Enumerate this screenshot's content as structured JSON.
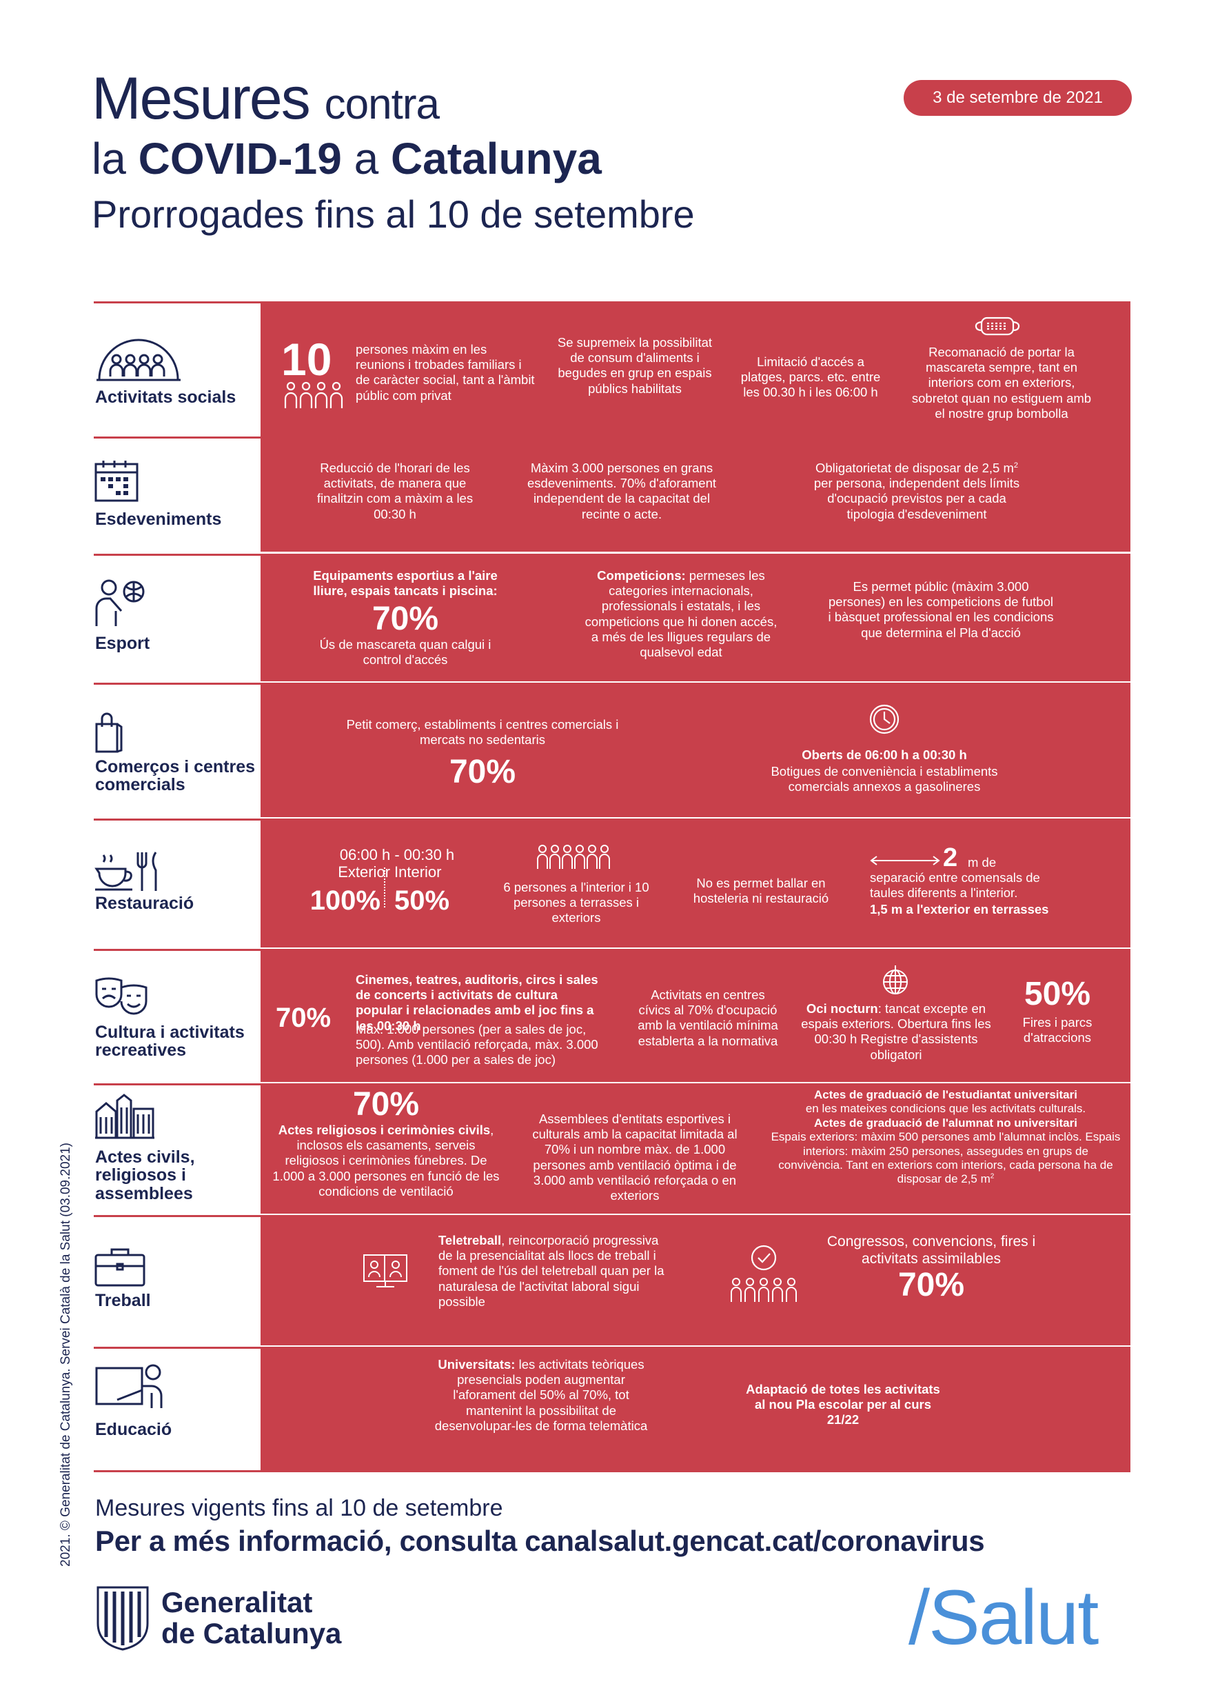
{
  "header": {
    "title_word1": "Mesures",
    "title_word2": "contra",
    "title_la": "la",
    "title_covid": "COVID-19",
    "title_a": "a",
    "title_catalunya": "Catalunya",
    "subtitle": "Prorrogades fins al 10 de setembre",
    "date": "3 de setembre de 2021"
  },
  "colors": {
    "panel": "#c8404b",
    "navy": "#1c2551",
    "salut_blue": "#4a90d9"
  },
  "rows": {
    "socials": {
      "label": "Activitats socials",
      "icon": "group-dome-icon",
      "big_number": "10",
      "c1": "persones màxim en les reunions i trobades familiars i de caràcter social, tant a l'àmbit públic com privat",
      "c2": "Se supremeix la possibilitat de consum d'aliments i begudes en grup en espais públics habilitats",
      "c3": "Limitació d'accés a platges, parcs. etc. entre les 00.30 h i les 06:00 h",
      "c4": "Recomanació de portar la mascareta sempre, tant en interiors com en exteriors, sobretot quan no estiguem amb el nostre grup bombolla"
    },
    "events": {
      "label": "Esdeveniments",
      "icon": "calendar-icon",
      "c1": "Reducció de l'horari de les activitats, de manera que finalitzin com a màxim a les 00:30 h",
      "c2": "Màxim 3.000 persones en grans esdeveniments. 70% d'aforament independent de la capacitat del recinte o acte.",
      "c3a": "Obligatorietat de disposar de 2,5 m",
      "c3sup": "2",
      "c3b": "per persona, independent dels límits d'ocupació previstos per a cada tipologia d'esdeveniment"
    },
    "sport": {
      "label": "Esport",
      "icon": "person-ball-icon",
      "c1_bold": "Equipaments esportius a l'aire lliure, espais tancats i piscina:",
      "c1_pct": "70%",
      "c1_text": "Ús de mascareta quan calgui i control d'accés",
      "c2_bold": "Competicions:",
      "c2_text": "permeses les categories internacionals, professionals i estatals, i les competicions que hi donen accés, a més de les lligues regulars de qualsevol edat",
      "c3": "Es permet públic (màxim 3.000 persones) en les competicions de futbol i bàsquet professional en les condicions que determina el Pla d'acció"
    },
    "commerce": {
      "label": "Comerços i centres comercials",
      "icon": "shopping-bag-icon",
      "c1_text": "Petit comerç, establiments i centres comercials i mercats no sedentaris",
      "c1_pct": "70%",
      "c2_bold": "Oberts de 06:00 h a 00:30 h",
      "c2_text": "Botigues de conveniència i establiments comercials annexos a gasolineres"
    },
    "food": {
      "label": "Restauració",
      "icon": "cup-cutlery-icon",
      "hours": "06:00 h - 00:30 h",
      "ext_label": "Exterior",
      "int_label": "Interior",
      "ext_pct": "100%",
      "int_pct": "50%",
      "c2": "6 persones a l'interior i 10 persones a terrasses i exteriors",
      "c3": "No es permet ballar en hosteleria ni restauració",
      "c4_num": "2",
      "c4_unit": "m de",
      "c4_text": "separació entre comensals de taules diferents a l'interior.",
      "c4_bold": "1,5 m a l'exterior en terrasses"
    },
    "culture": {
      "label": "Cultura i activitats recreatives",
      "icon": "theatre-masks-icon",
      "c1_pct": "70%",
      "c1_bold": "Cinemes, teatres, auditoris, circs i sales de concerts i activitats de cultura popular i relacionades amb el joc fins a les 00:30 h",
      "c1_text": "Màx. 1.000 persones (per a sales de joc, 500). Amb ventilació reforçada, màx. 3.000 persones (1.000 per a sales de joc)",
      "c2": "Activitats en centres cívics al 70% d'ocupació amb la ventilació mínima establerta a la normativa",
      "c3_bold": "Oci nocturn",
      "c3_text": ": tancat excepte en espais exteriors. Obertura fins les 00:30 h Registre d'assistents obligatori",
      "c4_pct": "50%",
      "c4_text": "Fires i parcs d'atraccions"
    },
    "civil": {
      "label": "Actes civils, religiosos i assemblees",
      "icon": "buildings-icon",
      "c1_pct": "70%",
      "c1_bold": "Actes religiosos i cerimònies civils",
      "c1_text": ", inclosos els casaments, serveis religiosos i cerimònies fúnebres. De 1.000 a 3.000 persones en funció de les condicions de ventilació",
      "c2": "Assemblees d'entitats esportives i culturals amb la capacitat limitada al 70% i un nombre màx. de 1.000 persones amb ventilació òptima i de 3.000 amb ventilació reforçada o en exteriors",
      "c3_bold1": "Actes de graduació de l'estudiantat universitari",
      "c3_text1": "en les mateixes condicions que les activitats culturals.",
      "c3_bold2": "Actes de graduació de l'alumnat no universitari",
      "c3_text2a": "Espais exteriors: màxim 500 persones amb l'alumnat inclòs. Espais interiors: màxim 250 persones, assegudes en grups de convivència. Tant en exteriors com interiors, cada persona ha de disposar de 2,5 m",
      "c3_sup": "2"
    },
    "work": {
      "label": "Treball",
      "icon": "briefcase-icon",
      "c1_bold": "Teletreball",
      "c1_text": ", reincorporació progressiva de la presencialitat als llocs de treball i foment de l'ús del teletreball quan per la naturalesa de l'activitat laboral sigui possible",
      "c2_text": "Congressos, convencions, fires i activitats assimilables",
      "c2_pct": "70%"
    },
    "edu": {
      "label": "Educació",
      "icon": "teacher-board-icon",
      "c1_bold": "Universitats:",
      "c1_text": "les activitats teòriques presencials poden augmentar l'aforament del 50% al 70%, tot mantenint la possibilitat de desenvolupar-les de forma telemàtica",
      "c2_bold": "Adaptació de totes les activitats al nou Pla escolar per al curs 21/22"
    }
  },
  "footer": {
    "line1": "Mesures vigents fins al 10 de setembre",
    "line2": "Per a més informació, consulta canalsalut.gencat.cat/coronavirus",
    "gen_line1": "Generalitat",
    "gen_line2": "de Catalunya",
    "salut": "/Salut",
    "credit": "2021. © Generalitat de Catalunya. Servei Català de la Salut (03.09.2021)"
  }
}
